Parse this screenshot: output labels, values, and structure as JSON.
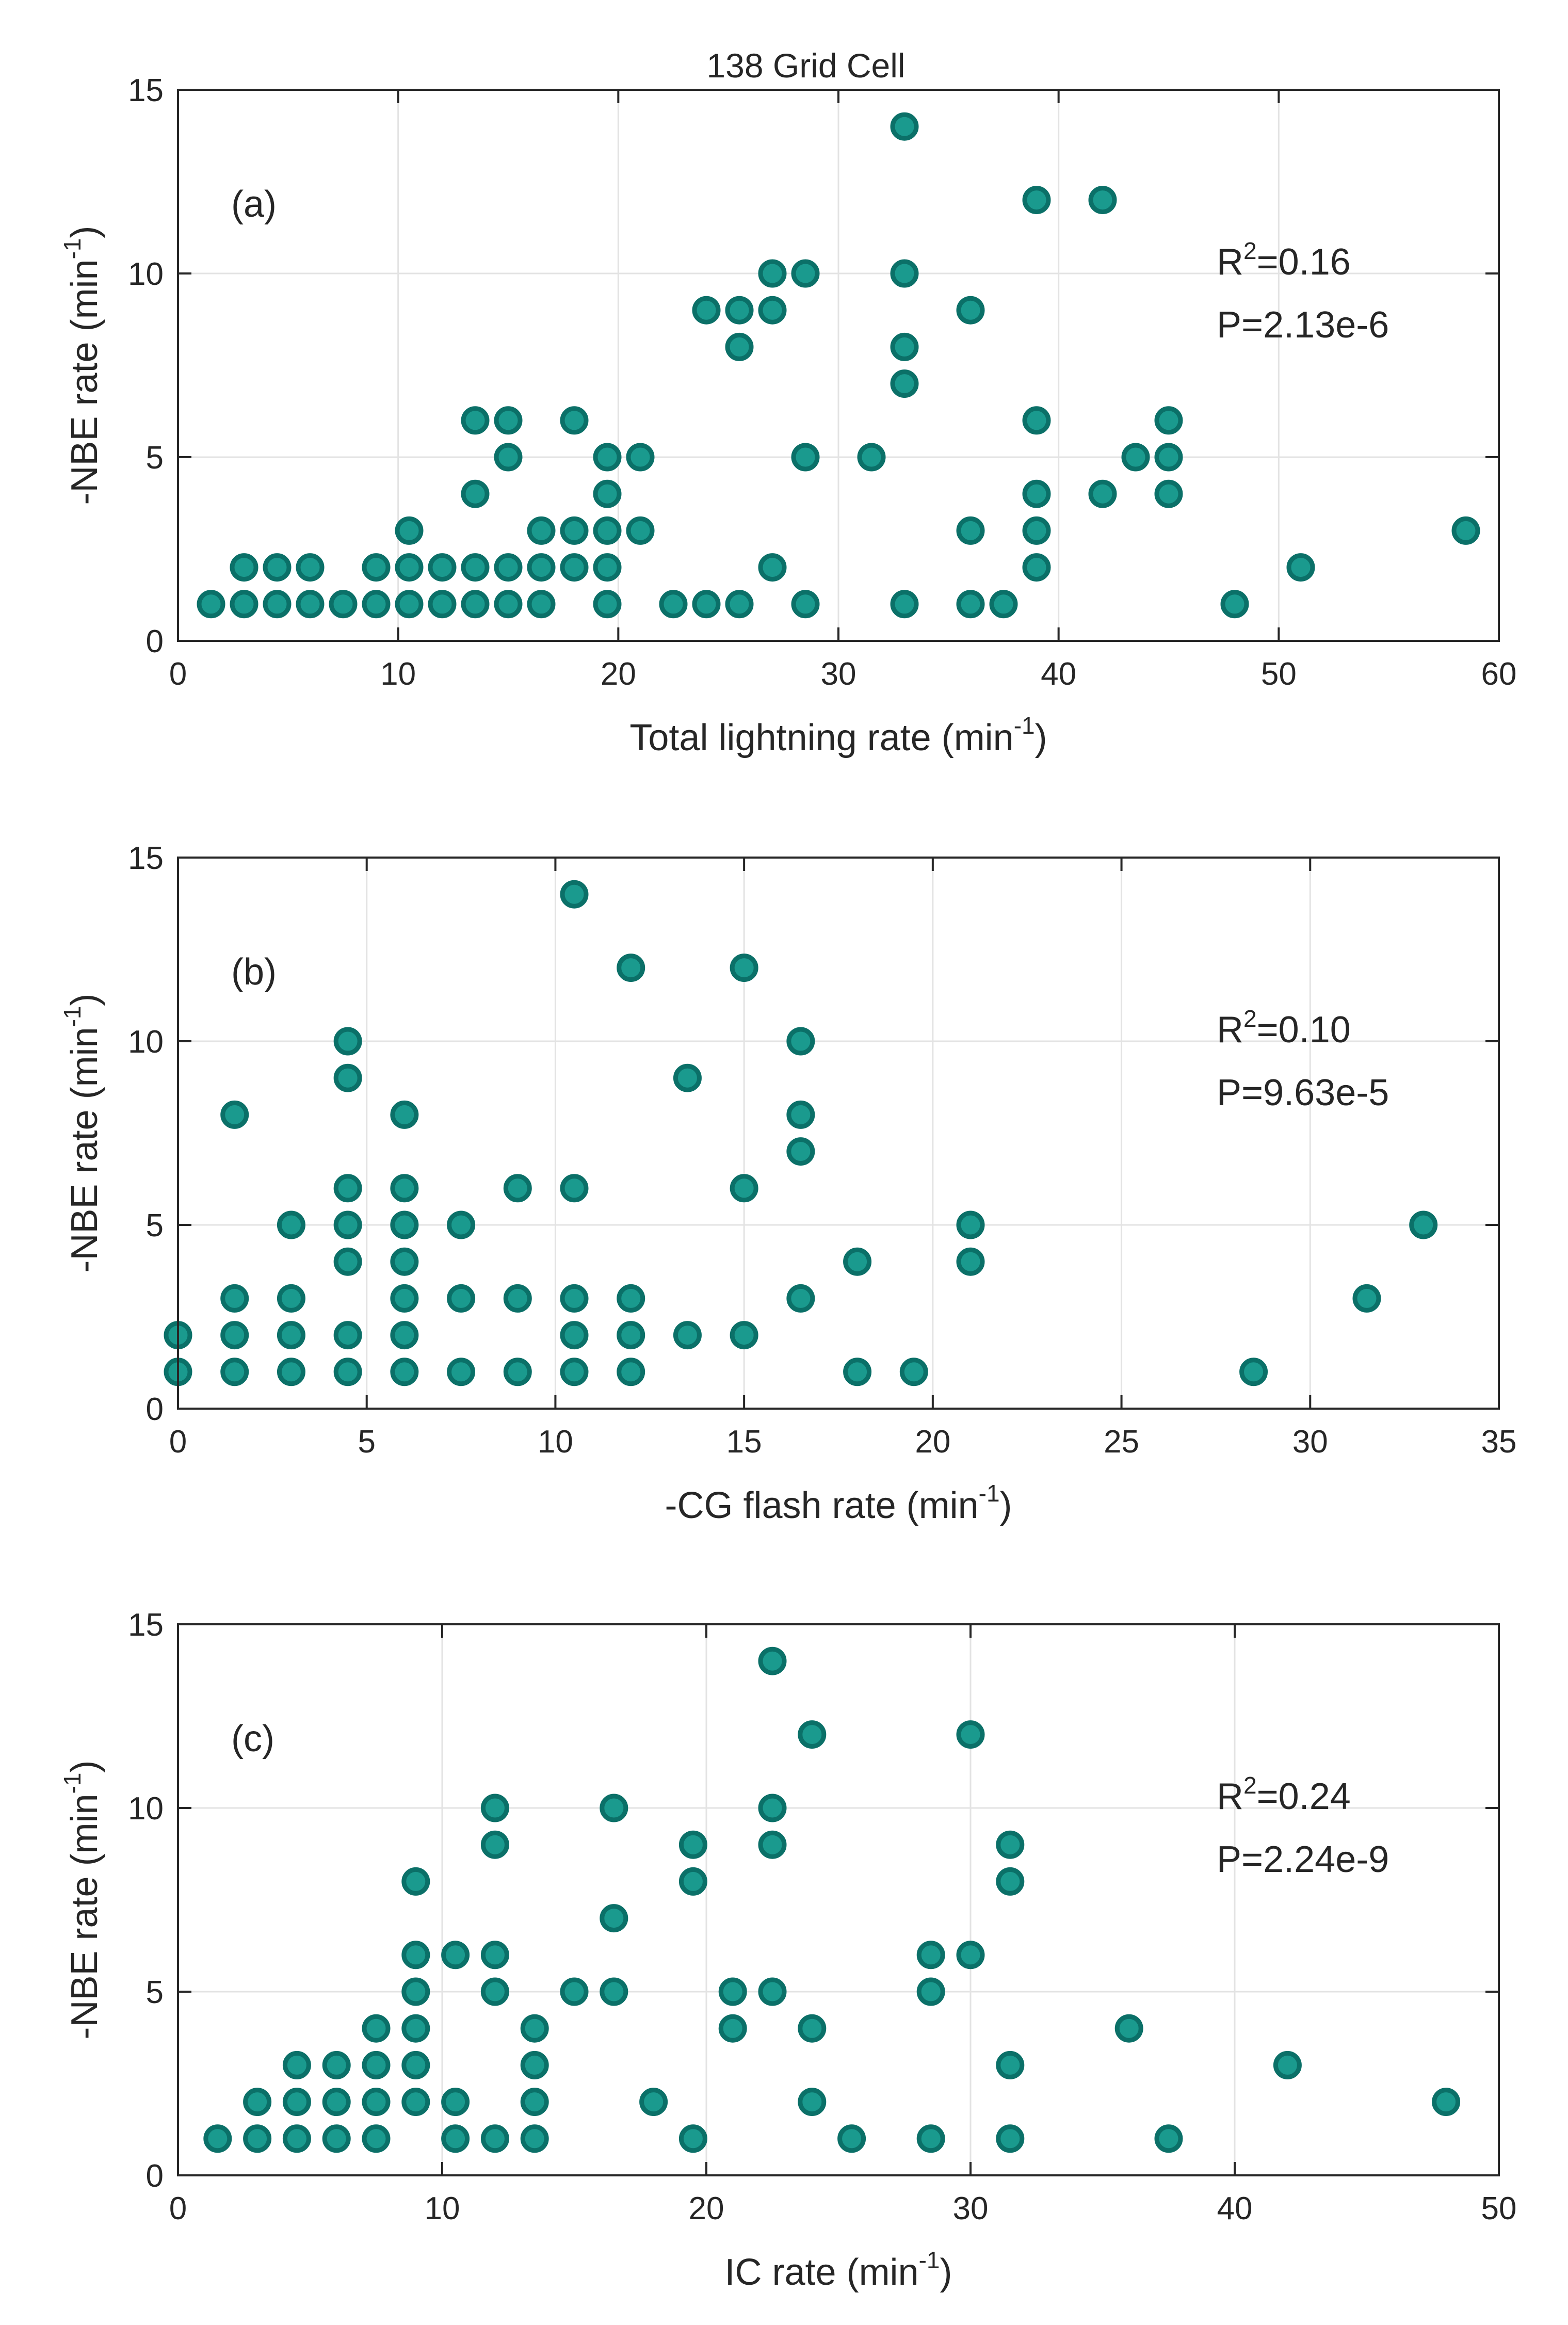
{
  "figure": {
    "title": "138 Grid Cell",
    "marker_fill": "#1a9a8e",
    "marker_edge": "#0b7068"
  },
  "chart_data": [
    {
      "type": "scatter",
      "panel": "(a)",
      "xlabel": "Total lightning rate (min",
      "xlabel_sup": "-1",
      "xlabel_tail": ")",
      "ylabel": "-NBE rate (min",
      "ylabel_sup": "-1",
      "ylabel_tail": ")",
      "r2_prefix": "R",
      "r2_sup": "2",
      "r2_value": "=0.16",
      "p_text": "P=2.13e-6",
      "xlim": [
        0,
        60
      ],
      "ylim": [
        0,
        15
      ],
      "xticks": [
        0,
        10,
        20,
        30,
        40,
        50,
        60
      ],
      "yticks": [
        0,
        5,
        10,
        15
      ],
      "grid": true,
      "points": [
        [
          1.5,
          1
        ],
        [
          3,
          1
        ],
        [
          3,
          2
        ],
        [
          4.5,
          1
        ],
        [
          4.5,
          2
        ],
        [
          6,
          1
        ],
        [
          6,
          2
        ],
        [
          7.5,
          1
        ],
        [
          9,
          1
        ],
        [
          9,
          2
        ],
        [
          10.5,
          1
        ],
        [
          10.5,
          2
        ],
        [
          10.5,
          3
        ],
        [
          12,
          1
        ],
        [
          12,
          2
        ],
        [
          13.5,
          1
        ],
        [
          13.5,
          2
        ],
        [
          13.5,
          4
        ],
        [
          13.5,
          6
        ],
        [
          15,
          1
        ],
        [
          15,
          2
        ],
        [
          15,
          5
        ],
        [
          15,
          6
        ],
        [
          16.5,
          1
        ],
        [
          16.5,
          2
        ],
        [
          16.5,
          3
        ],
        [
          18,
          2
        ],
        [
          18,
          3
        ],
        [
          18,
          6
        ],
        [
          19.5,
          1
        ],
        [
          19.5,
          2
        ],
        [
          19.5,
          3
        ],
        [
          19.5,
          4
        ],
        [
          19.5,
          5
        ],
        [
          21,
          3
        ],
        [
          21,
          5
        ],
        [
          22.5,
          1
        ],
        [
          24,
          1
        ],
        [
          24,
          9
        ],
        [
          25.5,
          1
        ],
        [
          25.5,
          8
        ],
        [
          25.5,
          9
        ],
        [
          27,
          2
        ],
        [
          27,
          9
        ],
        [
          27,
          10
        ],
        [
          28.5,
          1
        ],
        [
          28.5,
          5
        ],
        [
          28.5,
          10
        ],
        [
          31.5,
          5
        ],
        [
          33,
          1
        ],
        [
          33,
          7
        ],
        [
          33,
          8
        ],
        [
          33,
          10
        ],
        [
          33,
          14
        ],
        [
          36,
          1
        ],
        [
          36,
          3
        ],
        [
          36,
          9
        ],
        [
          37.5,
          1
        ],
        [
          39,
          2
        ],
        [
          39,
          3
        ],
        [
          39,
          4
        ],
        [
          39,
          6
        ],
        [
          39,
          12
        ],
        [
          42,
          4
        ],
        [
          42,
          12
        ],
        [
          43.5,
          5
        ],
        [
          45,
          4
        ],
        [
          45,
          5
        ],
        [
          45,
          6
        ],
        [
          48,
          1
        ],
        [
          51,
          2
        ],
        [
          58.5,
          3
        ]
      ]
    },
    {
      "type": "scatter",
      "panel": "(b)",
      "xlabel": "-CG flash rate (min",
      "xlabel_sup": "-1",
      "xlabel_tail": ")",
      "ylabel": "-NBE rate (min",
      "ylabel_sup": "-1",
      "ylabel_tail": ")",
      "r2_prefix": "R",
      "r2_sup": "2",
      "r2_value": "=0.10",
      "p_text": "P=9.63e-5",
      "xlim": [
        0,
        35
      ],
      "ylim": [
        0,
        15
      ],
      "xticks": [
        0,
        5,
        10,
        15,
        20,
        25,
        30,
        35
      ],
      "yticks": [
        0,
        5,
        10,
        15
      ],
      "grid": true,
      "points": [
        [
          0,
          1
        ],
        [
          0,
          2
        ],
        [
          1.5,
          1
        ],
        [
          1.5,
          2
        ],
        [
          1.5,
          3
        ],
        [
          1.5,
          8
        ],
        [
          3,
          1
        ],
        [
          3,
          2
        ],
        [
          3,
          3
        ],
        [
          3,
          5
        ],
        [
          4.5,
          1
        ],
        [
          4.5,
          2
        ],
        [
          4.5,
          4
        ],
        [
          4.5,
          5
        ],
        [
          4.5,
          6
        ],
        [
          4.5,
          9
        ],
        [
          4.5,
          10
        ],
        [
          6,
          1
        ],
        [
          6,
          2
        ],
        [
          6,
          3
        ],
        [
          6,
          4
        ],
        [
          6,
          5
        ],
        [
          6,
          6
        ],
        [
          6,
          8
        ],
        [
          7.5,
          1
        ],
        [
          7.5,
          3
        ],
        [
          7.5,
          5
        ],
        [
          9,
          1
        ],
        [
          9,
          3
        ],
        [
          9,
          6
        ],
        [
          10.5,
          1
        ],
        [
          10.5,
          2
        ],
        [
          10.5,
          3
        ],
        [
          10.5,
          6
        ],
        [
          10.5,
          14
        ],
        [
          12,
          1
        ],
        [
          12,
          2
        ],
        [
          12,
          3
        ],
        [
          12,
          12
        ],
        [
          13.5,
          2
        ],
        [
          13.5,
          9
        ],
        [
          15,
          2
        ],
        [
          15,
          6
        ],
        [
          15,
          12
        ],
        [
          16.5,
          3
        ],
        [
          16.5,
          7
        ],
        [
          16.5,
          8
        ],
        [
          16.5,
          10
        ],
        [
          18,
          1
        ],
        [
          18,
          4
        ],
        [
          19.5,
          1
        ],
        [
          21,
          4
        ],
        [
          21,
          5
        ],
        [
          28.5,
          1
        ],
        [
          31.5,
          3
        ],
        [
          33,
          5
        ]
      ]
    },
    {
      "type": "scatter",
      "panel": "(c)",
      "xlabel": "IC rate (min",
      "xlabel_sup": "-1",
      "xlabel_tail": ")",
      "ylabel": "-NBE rate (min",
      "ylabel_sup": "-1",
      "ylabel_tail": ")",
      "r2_prefix": "R",
      "r2_sup": "2",
      "r2_value": "=0.24",
      "p_text": "P=2.24e-9",
      "xlim": [
        0,
        50
      ],
      "ylim": [
        0,
        15
      ],
      "xticks": [
        0,
        10,
        20,
        30,
        40,
        50
      ],
      "yticks": [
        0,
        5,
        10,
        15
      ],
      "grid": true,
      "points": [
        [
          1.5,
          1
        ],
        [
          3,
          1
        ],
        [
          3,
          2
        ],
        [
          4.5,
          1
        ],
        [
          4.5,
          2
        ],
        [
          4.5,
          3
        ],
        [
          6,
          1
        ],
        [
          6,
          2
        ],
        [
          6,
          3
        ],
        [
          7.5,
          1
        ],
        [
          7.5,
          2
        ],
        [
          7.5,
          3
        ],
        [
          7.5,
          4
        ],
        [
          9,
          2
        ],
        [
          9,
          3
        ],
        [
          9,
          4
        ],
        [
          9,
          5
        ],
        [
          9,
          6
        ],
        [
          9,
          8
        ],
        [
          10.5,
          1
        ],
        [
          10.5,
          2
        ],
        [
          10.5,
          6
        ],
        [
          12,
          1
        ],
        [
          12,
          5
        ],
        [
          12,
          6
        ],
        [
          12,
          9
        ],
        [
          12,
          10
        ],
        [
          13.5,
          1
        ],
        [
          13.5,
          2
        ],
        [
          13.5,
          3
        ],
        [
          13.5,
          4
        ],
        [
          15,
          5
        ],
        [
          16.5,
          5
        ],
        [
          16.5,
          7
        ],
        [
          16.5,
          10
        ],
        [
          18,
          2
        ],
        [
          19.5,
          1
        ],
        [
          19.5,
          8
        ],
        [
          19.5,
          9
        ],
        [
          21,
          4
        ],
        [
          21,
          5
        ],
        [
          22.5,
          5
        ],
        [
          22.5,
          9
        ],
        [
          22.5,
          10
        ],
        [
          22.5,
          14
        ],
        [
          24,
          2
        ],
        [
          24,
          4
        ],
        [
          24,
          12
        ],
        [
          25.5,
          1
        ],
        [
          28.5,
          1
        ],
        [
          28.5,
          5
        ],
        [
          28.5,
          6
        ],
        [
          30,
          6
        ],
        [
          30,
          12
        ],
        [
          31.5,
          1
        ],
        [
          31.5,
          3
        ],
        [
          31.5,
          8
        ],
        [
          31.5,
          9
        ],
        [
          36,
          4
        ],
        [
          37.5,
          1
        ],
        [
          42,
          3
        ],
        [
          48,
          2
        ]
      ]
    }
  ]
}
